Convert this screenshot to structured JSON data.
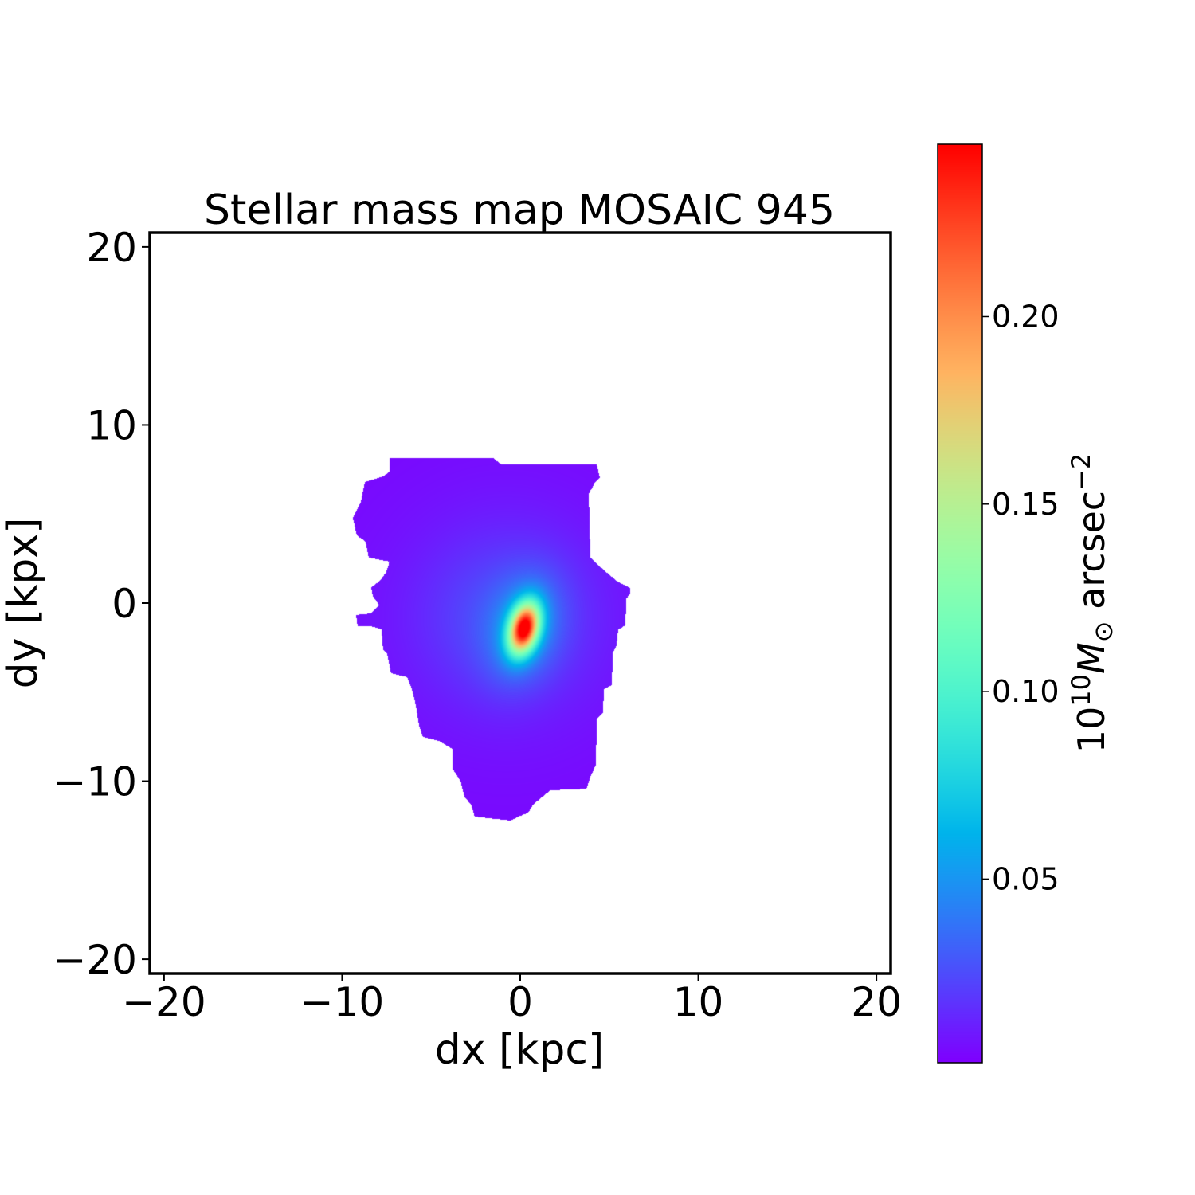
{
  "chart_data": {
    "type": "heatmap",
    "title": "Stellar mass map MOSAIC 945",
    "xlabel": "dx [kpc]",
    "ylabel": "dy [kpx]",
    "xlim": [
      -20.8,
      20.8
    ],
    "ylim": [
      -20.8,
      20.8
    ],
    "xticks": [
      -20,
      -10,
      0,
      10,
      20
    ],
    "yticks": [
      -20,
      -10,
      0,
      10,
      20
    ],
    "xtick_labels": [
      "−20",
      "−10",
      "0",
      "10",
      "20"
    ],
    "ytick_labels": [
      "−20",
      "−10",
      "0",
      "10",
      "20"
    ],
    "colormap": "rainbow",
    "grid": false,
    "colorbar": {
      "range": [
        0.001,
        0.246
      ],
      "ticks": [
        0.05,
        0.1,
        0.15,
        0.2
      ],
      "tick_labels": [
        "0.05",
        "0.10",
        "0.15",
        "0.20"
      ],
      "label": {
        "base": "10",
        "exp": "10",
        "symbol": "M",
        "sub": "⊙",
        "unit": " arcsec",
        "unit_exp": "−2"
      },
      "position": "right"
    },
    "peak": {
      "dx": 0.2,
      "dy": -1.4,
      "value": 0.246
    },
    "background_value": 0.003,
    "mask_outline_kpc": [
      [
        -7.34,
        8.14
      ],
      [
        -1.52,
        8.14
      ],
      [
        -1.07,
        7.79
      ],
      [
        4.3,
        7.79
      ],
      [
        4.47,
        7.02
      ],
      [
        4.16,
        6.71
      ],
      [
        3.85,
        6.13
      ],
      [
        3.94,
        2.55
      ],
      [
        4.3,
        2.19
      ],
      [
        4.92,
        1.66
      ],
      [
        5.46,
        1.21
      ],
      [
        6.17,
        0.85
      ],
      [
        6.17,
        0.54
      ],
      [
        5.95,
        0.22
      ],
      [
        5.91,
        -1.25
      ],
      [
        5.5,
        -1.48
      ],
      [
        5.41,
        -2.37
      ],
      [
        5.19,
        -2.82
      ],
      [
        5.15,
        -4.61
      ],
      [
        4.7,
        -4.83
      ],
      [
        4.65,
        -6.17
      ],
      [
        4.3,
        -6.49
      ],
      [
        4.25,
        -9.08
      ],
      [
        3.94,
        -9.75
      ],
      [
        3.71,
        -10.43
      ],
      [
        1.7,
        -10.51
      ],
      [
        1.25,
        -10.87
      ],
      [
        0.72,
        -11.32
      ],
      [
        0.45,
        -11.77
      ],
      [
        -0.09,
        -11.99
      ],
      [
        -0.54,
        -12.21
      ],
      [
        -2.55,
        -11.99
      ],
      [
        -2.77,
        -11.32
      ],
      [
        -3.13,
        -10.87
      ],
      [
        -3.36,
        -9.98
      ],
      [
        -3.8,
        -9.31
      ],
      [
        -3.8,
        -8.19
      ],
      [
        -4.56,
        -7.74
      ],
      [
        -5.46,
        -7.52
      ],
      [
        -5.68,
        -6.85
      ],
      [
        -5.91,
        -5.5
      ],
      [
        -6.09,
        -4.83
      ],
      [
        -6.35,
        -4.16
      ],
      [
        -7.25,
        -3.94
      ],
      [
        -7.47,
        -2.82
      ],
      [
        -7.7,
        -2.6
      ],
      [
        -7.79,
        -1.48
      ],
      [
        -8.37,
        -1.3
      ],
      [
        -9.13,
        -1.3
      ],
      [
        -9.22,
        -0.67
      ],
      [
        -8.37,
        -0.58
      ],
      [
        -7.92,
        -0.13
      ],
      [
        -8.28,
        0.4
      ],
      [
        -8.37,
        0.89
      ],
      [
        -7.92,
        1.21
      ],
      [
        -7.52,
        1.74
      ],
      [
        -7.34,
        2.33
      ],
      [
        -8.5,
        2.55
      ],
      [
        -8.68,
        3.45
      ],
      [
        -9.17,
        3.8
      ],
      [
        -9.4,
        4.79
      ],
      [
        -8.95,
        5.68
      ],
      [
        -8.72,
        6.8
      ],
      [
        -7.7,
        7.11
      ],
      [
        -7.34,
        7.38
      ]
    ]
  }
}
